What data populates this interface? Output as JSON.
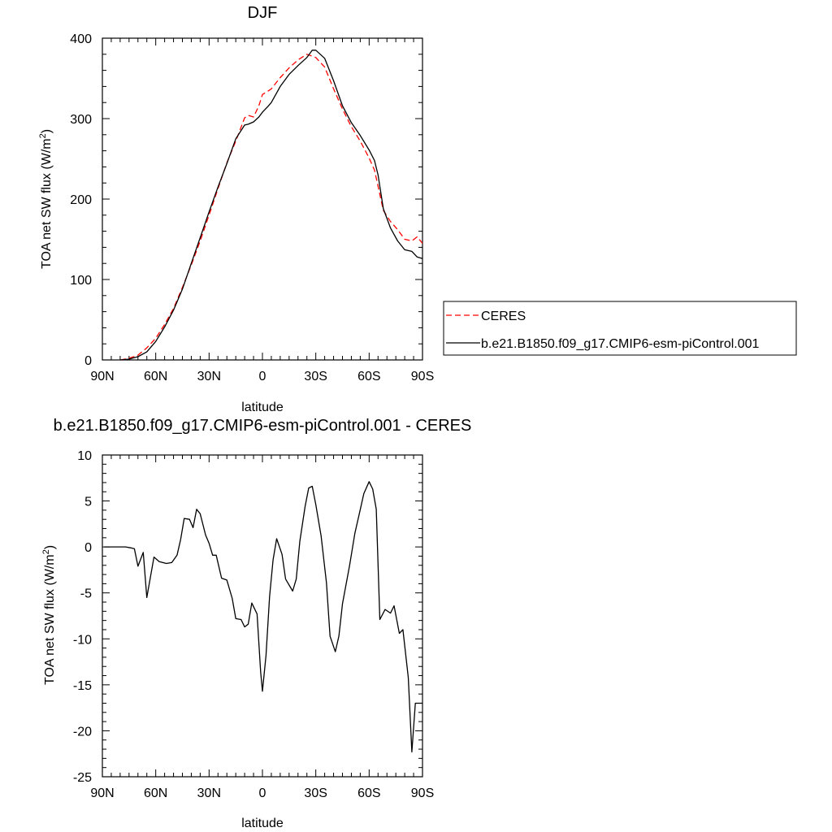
{
  "chart_data": [
    {
      "type": "line",
      "title": "DJF",
      "xlabel": "latitude",
      "ylabel": "TOA net SW flux (W/m",
      "ylabel_sup": "2",
      "ylabel_end": ")",
      "xlim": [
        90,
        -90
      ],
      "ylim": [
        0,
        400
      ],
      "x_ticks": [
        90,
        60,
        30,
        0,
        -30,
        -60,
        -90
      ],
      "x_tick_labels": [
        "90N",
        "60N",
        "30N",
        "0",
        "30S",
        "60S",
        "90S"
      ],
      "y_ticks": [
        0,
        100,
        200,
        300,
        400
      ],
      "y_tick_labels": [
        "0",
        "100",
        "200",
        "300",
        "400"
      ],
      "grid": false,
      "legend_position": "right",
      "series": [
        {
          "name": "CERES",
          "color": "#ff0000",
          "dash": "dashed",
          "x": [
            80,
            75,
            70,
            65,
            60,
            55,
            50,
            45,
            40,
            35,
            30,
            25,
            20,
            15,
            10,
            8,
            5,
            2,
            0,
            -3,
            -5,
            -10,
            -15,
            -20,
            -25,
            -30,
            -35,
            -40,
            -45,
            -50,
            -55,
            -60,
            -63,
            -65,
            -68,
            -72,
            -76,
            -80,
            -84,
            -87,
            -90
          ],
          "values": [
            0,
            2,
            6,
            15,
            27,
            44,
            64,
            90,
            118,
            148,
            180,
            213,
            245,
            272,
            301,
            304,
            302,
            316,
            330,
            334,
            337,
            351,
            363,
            373,
            380,
            376,
            364,
            337,
            312,
            290,
            272,
            251,
            236,
            216,
            186,
            172,
            162,
            150,
            148,
            153,
            145
          ]
        },
        {
          "name": "b.e21.B1850.f09_g17.CMIP6-esm-piControl.001",
          "color": "#000000",
          "dash": "solid",
          "x": [
            80,
            75,
            70,
            65,
            60,
            55,
            50,
            45,
            40,
            35,
            30,
            25,
            20,
            15,
            10,
            8,
            5,
            2,
            0,
            -3,
            -5,
            -10,
            -15,
            -20,
            -25,
            -28,
            -30,
            -35,
            -40,
            -45,
            -50,
            -55,
            -60,
            -63,
            -65,
            -68,
            -72,
            -76,
            -80,
            -84,
            -87,
            -90
          ],
          "values": [
            0,
            1,
            4,
            10,
            23,
            41,
            62,
            88,
            120,
            152,
            184,
            215,
            244,
            275,
            292,
            293,
            296,
            302,
            308,
            315,
            320,
            340,
            355,
            366,
            376,
            385,
            385,
            375,
            347,
            316,
            295,
            279,
            261,
            248,
            230,
            188,
            164,
            148,
            137,
            135,
            128,
            126
          ]
        }
      ]
    },
    {
      "type": "line",
      "title": "b.e21.B1850.f09_g17.CMIP6-esm-piControl.001 - CERES",
      "xlabel": "latitude",
      "ylabel": "TOA net SW flux (W/m",
      "ylabel_sup": "2",
      "ylabel_end": ")",
      "xlim": [
        90,
        -90
      ],
      "ylim": [
        -25,
        10
      ],
      "x_ticks": [
        90,
        60,
        30,
        0,
        -30,
        -60,
        -90
      ],
      "x_tick_labels": [
        "90N",
        "60N",
        "30N",
        "0",
        "30S",
        "60S",
        "90S"
      ],
      "y_ticks": [
        10,
        5,
        0,
        -5,
        -10,
        -15,
        -20,
        -25
      ],
      "y_tick_labels": [
        "10",
        "5",
        "0",
        "-5",
        "-10",
        "-15",
        "-20",
        "-25"
      ],
      "grid": false,
      "series": [
        {
          "name": "",
          "color": "#000000",
          "dash": "solid",
          "x": [
            89,
            85,
            80,
            77,
            74,
            72,
            70,
            67,
            65,
            61,
            58,
            54,
            51,
            48,
            46,
            44,
            41,
            39,
            37,
            35,
            32,
            30,
            28,
            26,
            23,
            20,
            17,
            15,
            12,
            10,
            8,
            6,
            3,
            1,
            0,
            -2,
            -4,
            -6,
            -8,
            -11,
            -13,
            -17,
            -19,
            -21,
            -24,
            -26,
            -28,
            -30,
            -33,
            -36,
            -38,
            -41,
            -43,
            -45,
            -49,
            -52,
            -54,
            -57,
            -60,
            -62,
            -64,
            -66,
            -69,
            -72,
            -74,
            -77,
            -79,
            -82,
            -84,
            -86,
            -88,
            -90
          ],
          "values": [
            0,
            0,
            0,
            0,
            -0.1,
            -0.2,
            -2.1,
            -0.6,
            -5.5,
            -1.1,
            -1.6,
            -1.8,
            -1.7,
            -0.9,
            0.8,
            3.1,
            3.0,
            2.1,
            4.1,
            3.6,
            1.3,
            0.4,
            -0.9,
            -0.9,
            -3.4,
            -3.6,
            -5.6,
            -7.8,
            -7.9,
            -8.7,
            -8.4,
            -6.1,
            -7.3,
            -13.6,
            -15.7,
            -11.8,
            -5.4,
            -1.4,
            0.9,
            -0.8,
            -3.5,
            -4.8,
            -3.5,
            0.6,
            4.4,
            6.4,
            6.6,
            4.6,
            1.2,
            -3.9,
            -9.7,
            -11.4,
            -9.7,
            -6.2,
            -2.0,
            1.5,
            3.2,
            5.8,
            7.1,
            6.3,
            4.1,
            -7.9,
            -6.8,
            -7.2,
            -6.4,
            -9.4,
            -9.0,
            -14.2,
            -22.3,
            -17.0,
            -17.0,
            -17.0
          ]
        }
      ]
    }
  ]
}
